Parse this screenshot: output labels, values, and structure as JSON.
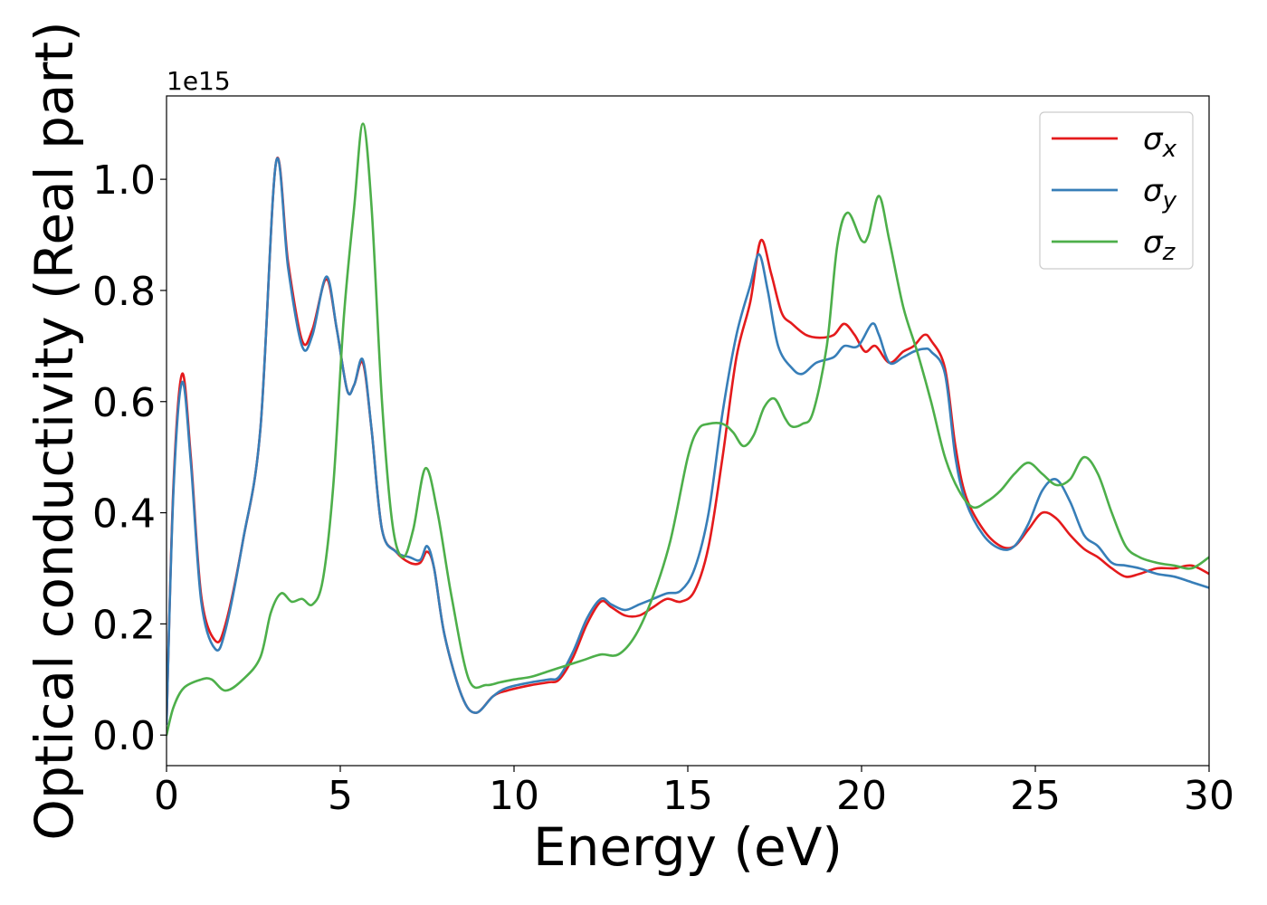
{
  "chart_data": {
    "type": "line",
    "title": "",
    "xlabel": "Energy (eV)",
    "ylabel": "Optical conductivity (Real part)",
    "y_offset_label": "1e15",
    "xlim": [
      0,
      30
    ],
    "ylim": [
      -0.055,
      1.15
    ],
    "xticks": [
      0,
      5,
      10,
      15,
      20,
      25,
      30
    ],
    "xtick_labels": [
      "0",
      "5",
      "10",
      "15",
      "20",
      "25",
      "30"
    ],
    "yticks": [
      0.0,
      0.2,
      0.4,
      0.6,
      0.8,
      1.0
    ],
    "ytick_labels": [
      "0.0",
      "0.2",
      "0.4",
      "0.6",
      "0.8",
      "1.0"
    ],
    "grid": false,
    "legend_position": "top-right",
    "series": [
      {
        "name": "σx",
        "legend_main": "σ",
        "legend_sub": "x",
        "color": "#e41a1c",
        "points": [
          [
            0,
            0.02
          ],
          [
            0.2,
            0.45
          ],
          [
            0.45,
            0.65
          ],
          [
            0.7,
            0.5
          ],
          [
            1.0,
            0.25
          ],
          [
            1.4,
            0.17
          ],
          [
            1.7,
            0.2
          ],
          [
            2.2,
            0.35
          ],
          [
            2.7,
            0.55
          ],
          [
            3.15,
            1.03
          ],
          [
            3.5,
            0.85
          ],
          [
            3.9,
            0.71
          ],
          [
            4.2,
            0.73
          ],
          [
            4.6,
            0.82
          ],
          [
            4.9,
            0.73
          ],
          [
            5.2,
            0.62
          ],
          [
            5.4,
            0.63
          ],
          [
            5.65,
            0.67
          ],
          [
            5.9,
            0.55
          ],
          [
            6.2,
            0.37
          ],
          [
            6.6,
            0.33
          ],
          [
            7.0,
            0.31
          ],
          [
            7.3,
            0.31
          ],
          [
            7.5,
            0.33
          ],
          [
            7.7,
            0.3
          ],
          [
            8.0,
            0.18
          ],
          [
            8.5,
            0.07
          ],
          [
            8.9,
            0.04
          ],
          [
            9.4,
            0.07
          ],
          [
            9.8,
            0.08
          ],
          [
            10.5,
            0.09
          ],
          [
            11.0,
            0.095
          ],
          [
            11.3,
            0.1
          ],
          [
            11.7,
            0.14
          ],
          [
            12.1,
            0.2
          ],
          [
            12.5,
            0.24
          ],
          [
            12.8,
            0.23
          ],
          [
            13.2,
            0.215
          ],
          [
            13.6,
            0.215
          ],
          [
            14.0,
            0.23
          ],
          [
            14.4,
            0.245
          ],
          [
            14.8,
            0.24
          ],
          [
            15.2,
            0.26
          ],
          [
            15.6,
            0.34
          ],
          [
            16.0,
            0.5
          ],
          [
            16.4,
            0.68
          ],
          [
            16.8,
            0.78
          ],
          [
            17.1,
            0.89
          ],
          [
            17.4,
            0.83
          ],
          [
            17.7,
            0.76
          ],
          [
            18.0,
            0.74
          ],
          [
            18.4,
            0.72
          ],
          [
            18.8,
            0.715
          ],
          [
            19.2,
            0.72
          ],
          [
            19.5,
            0.74
          ],
          [
            19.8,
            0.72
          ],
          [
            20.1,
            0.69
          ],
          [
            20.4,
            0.7
          ],
          [
            20.8,
            0.67
          ],
          [
            21.2,
            0.69
          ],
          [
            21.5,
            0.7
          ],
          [
            21.8,
            0.72
          ],
          [
            22.0,
            0.71
          ],
          [
            22.4,
            0.66
          ],
          [
            22.7,
            0.52
          ],
          [
            23.0,
            0.43
          ],
          [
            23.5,
            0.37
          ],
          [
            24.0,
            0.34
          ],
          [
            24.4,
            0.34
          ],
          [
            24.8,
            0.37
          ],
          [
            25.2,
            0.4
          ],
          [
            25.6,
            0.39
          ],
          [
            26.0,
            0.36
          ],
          [
            26.4,
            0.335
          ],
          [
            26.8,
            0.32
          ],
          [
            27.2,
            0.3
          ],
          [
            27.6,
            0.285
          ],
          [
            28.0,
            0.29
          ],
          [
            28.5,
            0.3
          ],
          [
            29.0,
            0.3
          ],
          [
            29.5,
            0.305
          ],
          [
            30.0,
            0.29
          ]
        ]
      },
      {
        "name": "σy",
        "legend_main": "σ",
        "legend_sub": "y",
        "color": "#377eb8",
        "points": [
          [
            0,
            0.02
          ],
          [
            0.2,
            0.44
          ],
          [
            0.45,
            0.635
          ],
          [
            0.7,
            0.49
          ],
          [
            1.0,
            0.24
          ],
          [
            1.4,
            0.155
          ],
          [
            1.7,
            0.19
          ],
          [
            2.2,
            0.35
          ],
          [
            2.7,
            0.55
          ],
          [
            3.15,
            1.03
          ],
          [
            3.5,
            0.84
          ],
          [
            3.9,
            0.7
          ],
          [
            4.2,
            0.72
          ],
          [
            4.6,
            0.825
          ],
          [
            4.9,
            0.73
          ],
          [
            5.2,
            0.62
          ],
          [
            5.4,
            0.63
          ],
          [
            5.65,
            0.675
          ],
          [
            5.9,
            0.55
          ],
          [
            6.2,
            0.37
          ],
          [
            6.6,
            0.33
          ],
          [
            7.0,
            0.32
          ],
          [
            7.3,
            0.315
          ],
          [
            7.5,
            0.34
          ],
          [
            7.7,
            0.3
          ],
          [
            8.0,
            0.18
          ],
          [
            8.5,
            0.07
          ],
          [
            8.9,
            0.04
          ],
          [
            9.4,
            0.07
          ],
          [
            9.8,
            0.085
          ],
          [
            10.5,
            0.095
          ],
          [
            11.0,
            0.1
          ],
          [
            11.3,
            0.105
          ],
          [
            11.7,
            0.15
          ],
          [
            12.1,
            0.21
          ],
          [
            12.5,
            0.245
          ],
          [
            12.8,
            0.235
          ],
          [
            13.2,
            0.225
          ],
          [
            13.6,
            0.235
          ],
          [
            14.0,
            0.245
          ],
          [
            14.4,
            0.255
          ],
          [
            14.8,
            0.26
          ],
          [
            15.2,
            0.3
          ],
          [
            15.6,
            0.4
          ],
          [
            16.0,
            0.58
          ],
          [
            16.4,
            0.72
          ],
          [
            16.8,
            0.81
          ],
          [
            17.05,
            0.865
          ],
          [
            17.3,
            0.8
          ],
          [
            17.6,
            0.7
          ],
          [
            18.0,
            0.66
          ],
          [
            18.3,
            0.65
          ],
          [
            18.7,
            0.67
          ],
          [
            19.2,
            0.68
          ],
          [
            19.5,
            0.7
          ],
          [
            19.9,
            0.7
          ],
          [
            20.3,
            0.74
          ],
          [
            20.5,
            0.72
          ],
          [
            20.8,
            0.67
          ],
          [
            21.2,
            0.68
          ],
          [
            21.5,
            0.69
          ],
          [
            21.8,
            0.695
          ],
          [
            22.0,
            0.69
          ],
          [
            22.4,
            0.65
          ],
          [
            22.7,
            0.5
          ],
          [
            23.0,
            0.42
          ],
          [
            23.5,
            0.36
          ],
          [
            24.0,
            0.335
          ],
          [
            24.4,
            0.34
          ],
          [
            24.8,
            0.38
          ],
          [
            25.2,
            0.44
          ],
          [
            25.6,
            0.46
          ],
          [
            26.0,
            0.42
          ],
          [
            26.4,
            0.36
          ],
          [
            26.8,
            0.34
          ],
          [
            27.2,
            0.31
          ],
          [
            27.6,
            0.305
          ],
          [
            28.0,
            0.3
          ],
          [
            28.5,
            0.29
          ],
          [
            29.0,
            0.285
          ],
          [
            29.5,
            0.275
          ],
          [
            30.0,
            0.265
          ]
        ]
      },
      {
        "name": "σz",
        "legend_main": "σ",
        "legend_sub": "z",
        "color": "#4daf4a",
        "points": [
          [
            0,
            0.0
          ],
          [
            0.2,
            0.05
          ],
          [
            0.5,
            0.085
          ],
          [
            1.0,
            0.1
          ],
          [
            1.3,
            0.1
          ],
          [
            1.7,
            0.08
          ],
          [
            2.2,
            0.1
          ],
          [
            2.7,
            0.14
          ],
          [
            3.0,
            0.22
          ],
          [
            3.3,
            0.255
          ],
          [
            3.6,
            0.24
          ],
          [
            3.9,
            0.245
          ],
          [
            4.2,
            0.235
          ],
          [
            4.5,
            0.28
          ],
          [
            4.8,
            0.45
          ],
          [
            5.1,
            0.75
          ],
          [
            5.4,
            0.95
          ],
          [
            5.65,
            1.1
          ],
          [
            5.9,
            0.95
          ],
          [
            6.2,
            0.6
          ],
          [
            6.5,
            0.38
          ],
          [
            6.8,
            0.32
          ],
          [
            7.1,
            0.37
          ],
          [
            7.45,
            0.48
          ],
          [
            7.8,
            0.4
          ],
          [
            8.2,
            0.25
          ],
          [
            8.7,
            0.1
          ],
          [
            9.2,
            0.09
          ],
          [
            9.6,
            0.095
          ],
          [
            10.0,
            0.1
          ],
          [
            10.5,
            0.105
          ],
          [
            11.0,
            0.115
          ],
          [
            11.5,
            0.125
          ],
          [
            12.0,
            0.135
          ],
          [
            12.5,
            0.145
          ],
          [
            13.0,
            0.145
          ],
          [
            13.5,
            0.18
          ],
          [
            14.0,
            0.25
          ],
          [
            14.5,
            0.35
          ],
          [
            15.0,
            0.5
          ],
          [
            15.3,
            0.55
          ],
          [
            15.6,
            0.56
          ],
          [
            16.0,
            0.56
          ],
          [
            16.3,
            0.545
          ],
          [
            16.6,
            0.52
          ],
          [
            16.9,
            0.54
          ],
          [
            17.2,
            0.59
          ],
          [
            17.5,
            0.605
          ],
          [
            17.8,
            0.57
          ],
          [
            18.0,
            0.555
          ],
          [
            18.3,
            0.56
          ],
          [
            18.6,
            0.58
          ],
          [
            19.0,
            0.7
          ],
          [
            19.3,
            0.88
          ],
          [
            19.6,
            0.94
          ],
          [
            20.0,
            0.89
          ],
          [
            20.2,
            0.9
          ],
          [
            20.5,
            0.97
          ],
          [
            20.8,
            0.89
          ],
          [
            21.2,
            0.77
          ],
          [
            21.6,
            0.69
          ],
          [
            22.0,
            0.6
          ],
          [
            22.4,
            0.5
          ],
          [
            22.8,
            0.44
          ],
          [
            23.2,
            0.41
          ],
          [
            23.6,
            0.42
          ],
          [
            24.0,
            0.44
          ],
          [
            24.4,
            0.47
          ],
          [
            24.8,
            0.49
          ],
          [
            25.2,
            0.47
          ],
          [
            25.6,
            0.45
          ],
          [
            26.0,
            0.46
          ],
          [
            26.4,
            0.5
          ],
          [
            26.8,
            0.47
          ],
          [
            27.2,
            0.4
          ],
          [
            27.6,
            0.34
          ],
          [
            28.0,
            0.32
          ],
          [
            28.5,
            0.31
          ],
          [
            29.0,
            0.305
          ],
          [
            29.5,
            0.3
          ],
          [
            30.0,
            0.32
          ]
        ]
      }
    ]
  }
}
